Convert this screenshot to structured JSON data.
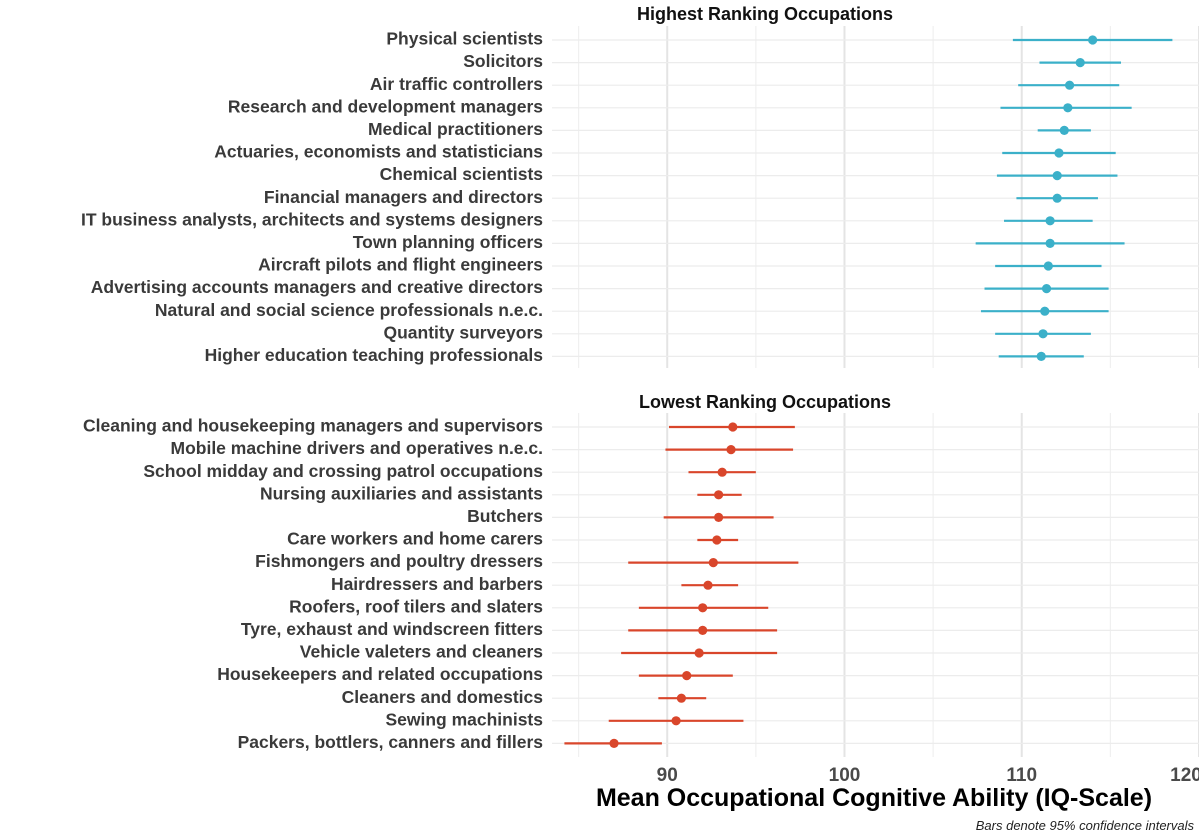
{
  "chart_data": {
    "type": "scatter",
    "subtype": "dot-and-whisker",
    "xlabel": "Mean Occupational Cognitive Ability (IQ-Scale)",
    "xlim": [
      83.5,
      120
    ],
    "xticks": [
      90,
      100,
      110,
      120
    ],
    "grid": true,
    "legend": "none",
    "caption": "Bars denote 95% confidence intervals",
    "panels": [
      {
        "title": "Highest Ranking Occupations",
        "color": "#3bb0c9",
        "rows": [
          {
            "label": "Physical scientists",
            "mean": 114.0,
            "lo": 109.5,
            "hi": 118.5
          },
          {
            "label": "Solicitors",
            "mean": 113.3,
            "lo": 111.0,
            "hi": 115.6
          },
          {
            "label": "Air traffic controllers",
            "mean": 112.7,
            "lo": 109.8,
            "hi": 115.5
          },
          {
            "label": "Research and development managers",
            "mean": 112.6,
            "lo": 108.8,
            "hi": 116.2
          },
          {
            "label": "Medical practitioners",
            "mean": 112.4,
            "lo": 110.9,
            "hi": 113.9
          },
          {
            "label": "Actuaries, economists and statisticians",
            "mean": 112.1,
            "lo": 108.9,
            "hi": 115.3
          },
          {
            "label": "Chemical scientists",
            "mean": 112.0,
            "lo": 108.6,
            "hi": 115.4
          },
          {
            "label": "Financial managers and directors",
            "mean": 112.0,
            "lo": 109.7,
            "hi": 114.3
          },
          {
            "label": "IT business analysts, architects and systems designers",
            "mean": 111.6,
            "lo": 109.0,
            "hi": 114.0
          },
          {
            "label": "Town planning officers",
            "mean": 111.6,
            "lo": 107.4,
            "hi": 115.8
          },
          {
            "label": "Aircraft pilots and flight engineers",
            "mean": 111.5,
            "lo": 108.5,
            "hi": 114.5
          },
          {
            "label": "Advertising accounts managers and creative directors",
            "mean": 111.4,
            "lo": 107.9,
            "hi": 114.9
          },
          {
            "label": "Natural and social science professionals n.e.c.",
            "mean": 111.3,
            "lo": 107.7,
            "hi": 114.9
          },
          {
            "label": "Quantity surveyors",
            "mean": 111.2,
            "lo": 108.5,
            "hi": 113.9
          },
          {
            "label": "Higher education teaching professionals",
            "mean": 111.1,
            "lo": 108.7,
            "hi": 113.5
          }
        ]
      },
      {
        "title": "Lowest Ranking Occupations",
        "color": "#d9462b",
        "rows": [
          {
            "label": "Cleaning and housekeeping managers and supervisors",
            "mean": 93.7,
            "lo": 90.1,
            "hi": 97.2
          },
          {
            "label": "Mobile machine drivers and operatives n.e.c.",
            "mean": 93.6,
            "lo": 89.9,
            "hi": 97.1
          },
          {
            "label": "School midday and crossing patrol occupations",
            "mean": 93.1,
            "lo": 91.2,
            "hi": 95.0
          },
          {
            "label": "Nursing auxiliaries and assistants",
            "mean": 92.9,
            "lo": 91.7,
            "hi": 94.2
          },
          {
            "label": "Butchers",
            "mean": 92.9,
            "lo": 89.8,
            "hi": 96.0
          },
          {
            "label": "Care workers and home carers",
            "mean": 92.8,
            "lo": 91.7,
            "hi": 94.0
          },
          {
            "label": "Fishmongers and poultry dressers",
            "mean": 92.6,
            "lo": 87.8,
            "hi": 97.4
          },
          {
            "label": "Hairdressers and barbers",
            "mean": 92.3,
            "lo": 90.8,
            "hi": 94.0
          },
          {
            "label": "Roofers, roof tilers and slaters",
            "mean": 92.0,
            "lo": 88.4,
            "hi": 95.7
          },
          {
            "label": "Tyre, exhaust and windscreen fitters",
            "mean": 92.0,
            "lo": 87.8,
            "hi": 96.2
          },
          {
            "label": "Vehicle valeters and cleaners",
            "mean": 91.8,
            "lo": 87.4,
            "hi": 96.2
          },
          {
            "label": "Housekeepers and related occupations",
            "mean": 91.1,
            "lo": 88.4,
            "hi": 93.7
          },
          {
            "label": "Cleaners and domestics",
            "mean": 90.8,
            "lo": 89.5,
            "hi": 92.2
          },
          {
            "label": "Sewing machinists",
            "mean": 90.5,
            "lo": 86.7,
            "hi": 94.3
          },
          {
            "label": "Packers, bottlers, canners and fillers",
            "mean": 87.0,
            "lo": 84.2,
            "hi": 89.7
          }
        ]
      }
    ]
  }
}
